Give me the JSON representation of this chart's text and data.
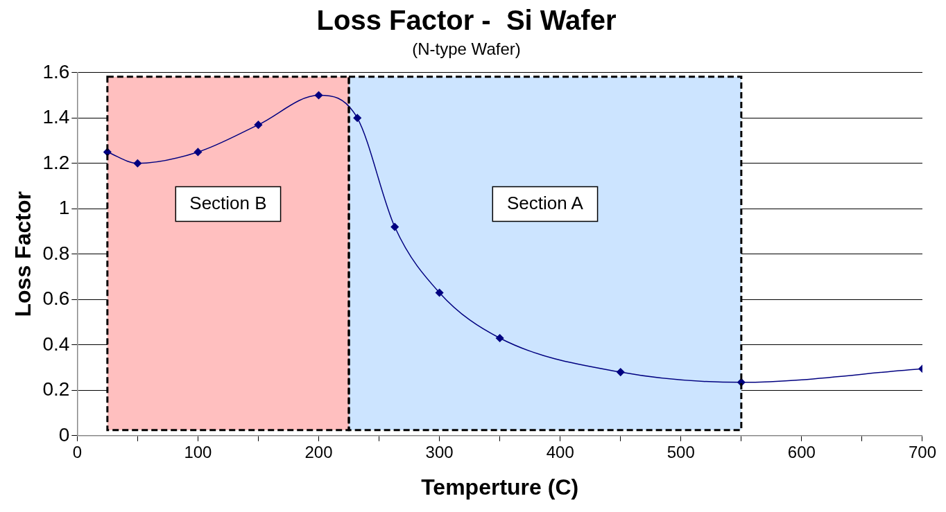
{
  "chart_data": {
    "type": "line",
    "title": "Loss Factor -  Si Wafer",
    "subtitle": "(N-type Wafer)",
    "xlabel": "Temperture (C)",
    "ylabel": "Loss Factor",
    "x": [
      25,
      50,
      100,
      150,
      200,
      232,
      263,
      300,
      350,
      450,
      550,
      700
    ],
    "series": [
      {
        "color": "#000080",
        "values": [
          1.25,
          1.2,
          1.25,
          1.37,
          1.5,
          1.4,
          0.92,
          0.63,
          0.43,
          0.28,
          0.235,
          0.295
        ]
      }
    ],
    "xlim": [
      0,
      700
    ],
    "xticks": [
      0,
      {
        "value": 50,
        "label": null
      },
      100,
      {
        "value": 150,
        "label": null
      },
      200,
      {
        "value": 250,
        "label": null
      },
      300,
      {
        "value": 350,
        "label": null
      },
      400,
      {
        "value": 450,
        "label": null
      },
      500,
      {
        "value": 550,
        "label": null
      },
      600,
      {
        "value": 650,
        "label": null
      },
      700
    ],
    "ylim": [
      0,
      1.6
    ],
    "yticks": [
      0,
      0.2,
      0.4,
      0.6,
      0.8,
      1,
      1.2,
      1.4,
      1.6
    ],
    "bands": [
      {
        "axis": "x",
        "from": 25,
        "to": 225,
        "label": "Section B",
        "color": "#ffbfbf"
      },
      {
        "axis": "x",
        "from": 225,
        "to": 550,
        "label": "Section A",
        "color": "#cce4ff"
      }
    ],
    "grid": "y",
    "legend": false,
    "marker": "diamond",
    "line_style": "solid"
  }
}
